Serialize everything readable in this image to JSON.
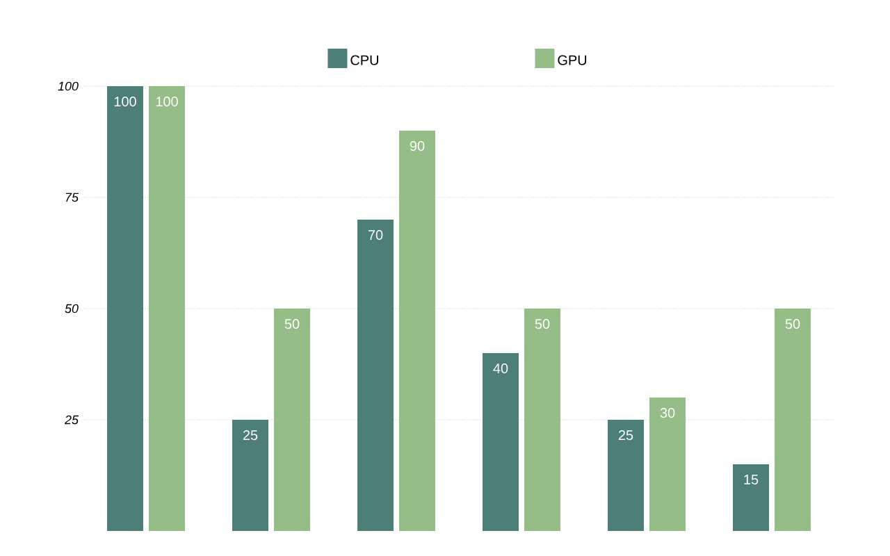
{
  "chart_data": {
    "type": "bar",
    "categories": [
      null,
      null,
      null,
      null,
      null,
      null
    ],
    "series": [
      {
        "name": "CPU",
        "color": "#4e7f76",
        "values": [
          100,
          25,
          70,
          40,
          25,
          15
        ]
      },
      {
        "name": "GPU",
        "color": "#95bd87",
        "values": [
          100,
          50,
          90,
          50,
          30,
          50
        ]
      }
    ],
    "ylim": [
      0,
      100
    ],
    "yticks": [
      25,
      50,
      75,
      100
    ],
    "grid": "y",
    "legend": "top",
    "data_labels": true
  }
}
